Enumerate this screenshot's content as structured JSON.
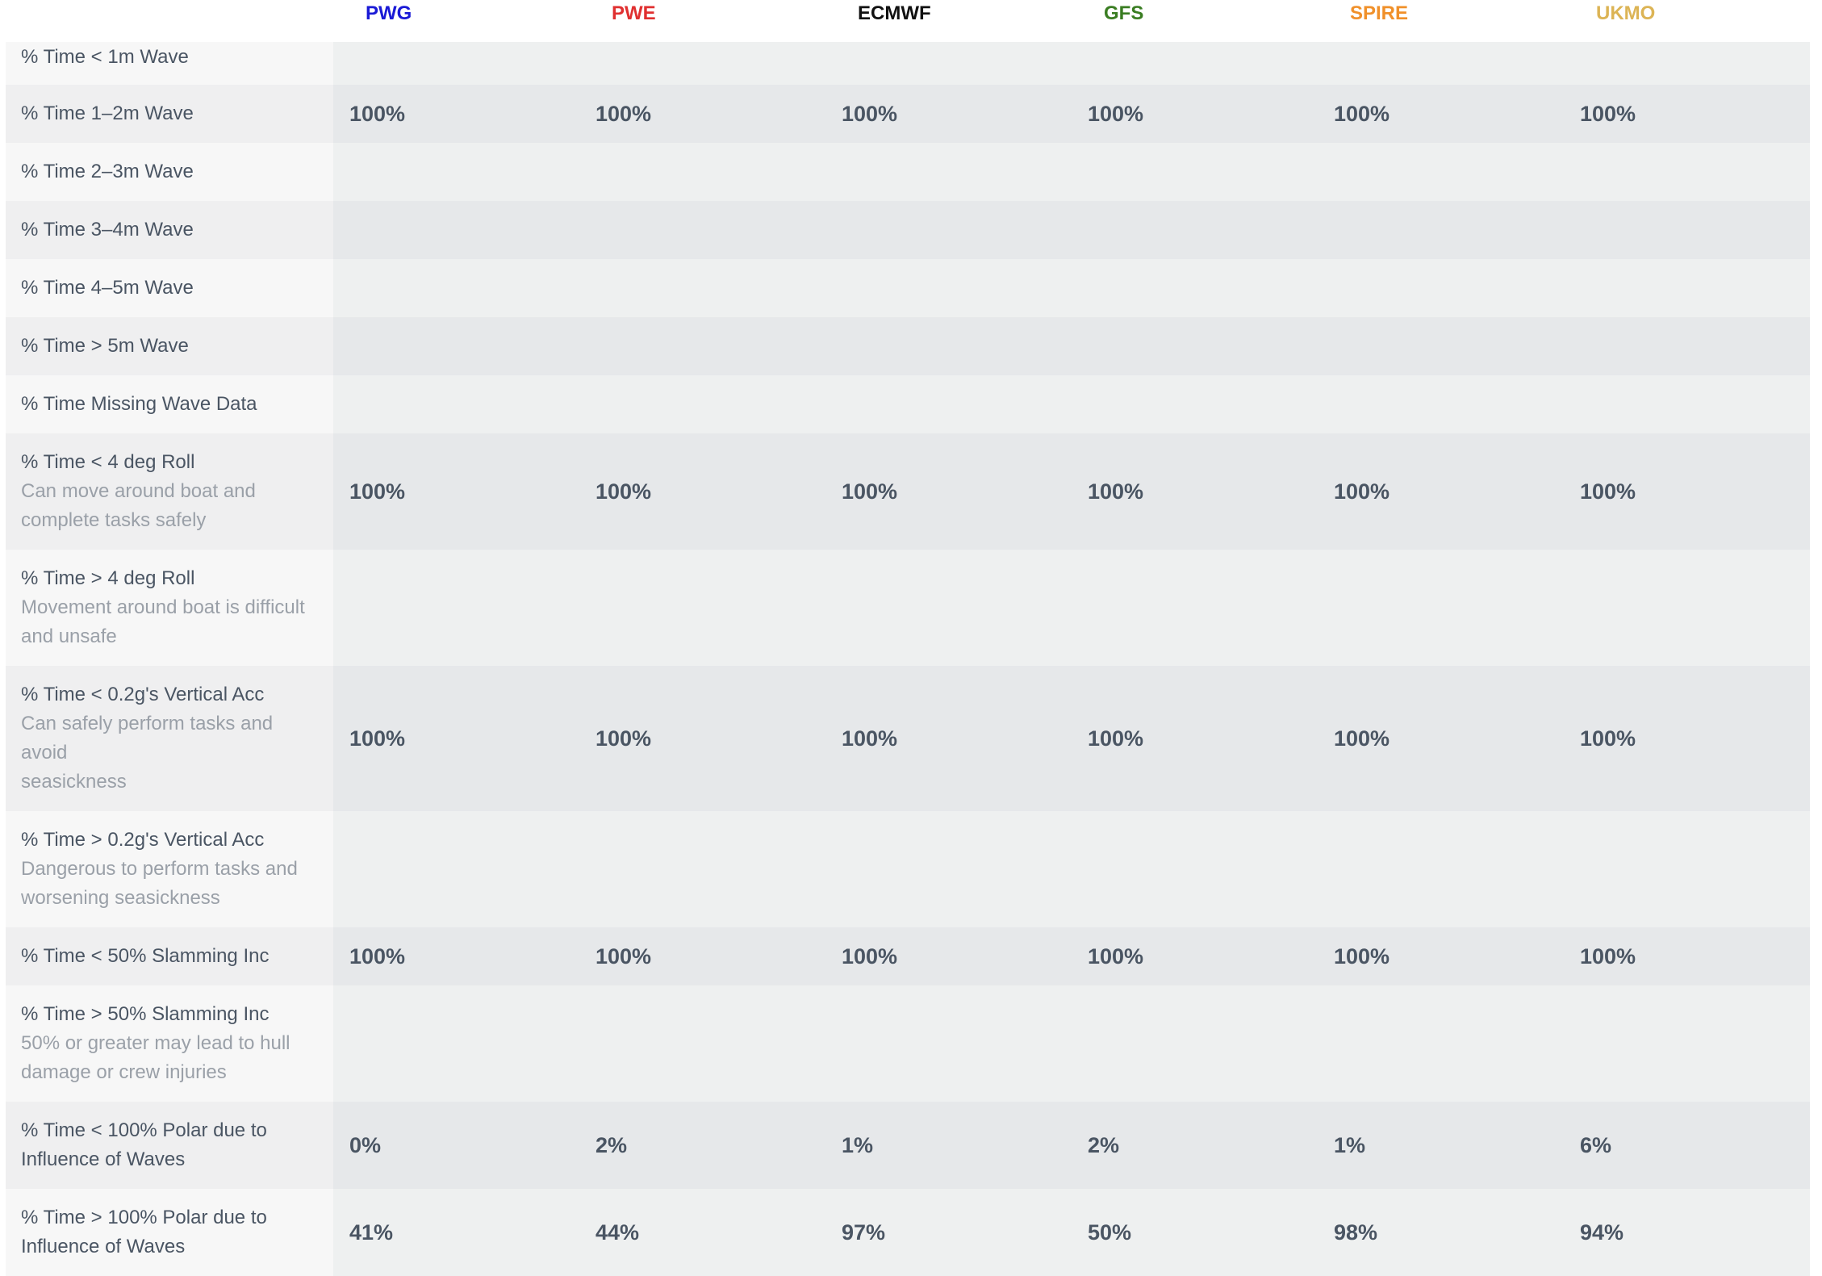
{
  "header": {
    "columns": [
      {
        "name": "PWG",
        "color": "#1a1ad6"
      },
      {
        "name": "PWE",
        "color": "#e03030"
      },
      {
        "name": "ECMWF",
        "color": "#111111"
      },
      {
        "name": "GFS",
        "color": "#3a7d22"
      },
      {
        "name": "SPIRE",
        "color": "#f0902a"
      },
      {
        "name": "UKMO",
        "color": "#dcb455"
      }
    ]
  },
  "table": {
    "rows": [
      {
        "label": "% Time < 1m Wave"
      },
      {
        "label": "% Time 1–2m Wave",
        "values": [
          "100%",
          "100%",
          "100%",
          "100%",
          "100%",
          "100%"
        ]
      },
      {
        "label": "% Time 2–3m Wave"
      },
      {
        "label": "% Time 3–4m Wave"
      },
      {
        "label": "% Time 4–5m Wave"
      },
      {
        "label": "% Time > 5m Wave"
      },
      {
        "label": "% Time Missing Wave Data"
      },
      {
        "label": "% Time < 4 deg Roll",
        "description": [
          "Can move around boat and",
          "complete tasks safely"
        ],
        "values": [
          "100%",
          "100%",
          "100%",
          "100%",
          "100%",
          "100%"
        ]
      },
      {
        "label": "% Time > 4 deg Roll",
        "description": [
          "Movement around boat is difficult",
          "and unsafe"
        ]
      },
      {
        "label": "% Time < 0.2g's Vertical Acc",
        "description": [
          "Can safely perform tasks and avoid",
          "seasickness"
        ],
        "values": [
          "100%",
          "100%",
          "100%",
          "100%",
          "100%",
          "100%"
        ]
      },
      {
        "label": "% Time > 0.2g's Vertical Acc",
        "description": [
          "Dangerous to perform tasks and",
          "worsening seasickness"
        ]
      },
      {
        "label": "% Time < 50% Slamming Inc",
        "values": [
          "100%",
          "100%",
          "100%",
          "100%",
          "100%",
          "100%"
        ]
      },
      {
        "label": "% Time > 50% Slamming Inc",
        "description": [
          "50% or greater may lead to hull",
          "damage or crew injuries"
        ]
      },
      {
        "label": [
          "% Time < 100% Polar due to",
          "Influence of Waves"
        ],
        "values": [
          "0%",
          "2%",
          "1%",
          "2%",
          "1%",
          "6%"
        ]
      },
      {
        "label": [
          "% Time > 100% Polar due to",
          "Influence of Waves"
        ],
        "values": [
          "41%",
          "44%",
          "97%",
          "50%",
          "98%",
          "94%"
        ]
      }
    ]
  }
}
